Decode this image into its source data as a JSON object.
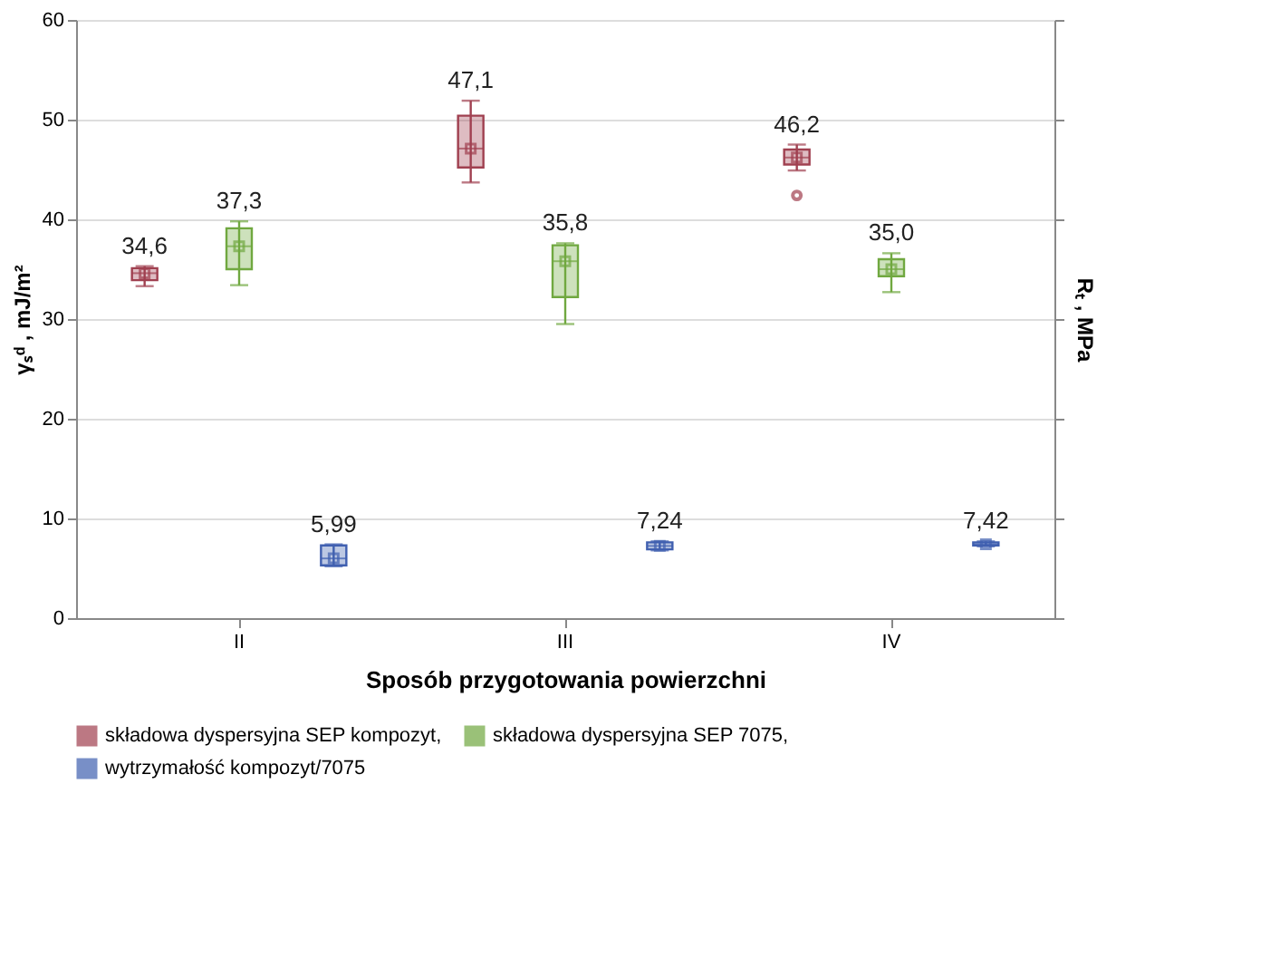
{
  "chart_data": {
    "type": "box",
    "xlabel": "Sposób przygotowania powierzchni",
    "ylabel": "γₛᵈ , mJ/m²",
    "y2label": "Rₜ , MPa",
    "categories": [
      "II",
      "III",
      "IV"
    ],
    "ylim": [
      0,
      60
    ],
    "yticks": [
      0,
      10,
      20,
      30,
      40,
      50,
      60
    ],
    "grid": "y",
    "legend": "bottom",
    "marker": "square",
    "series": [
      {
        "name": "składowa dyspersyjna SEP kompozyt,",
        "color": "#a04050",
        "value_labels": [
          "34,6",
          "47,1",
          "46,2"
        ],
        "boxes": [
          {
            "low": 33.3,
            "q1": 33.9,
            "median": 34.6,
            "q3": 35.1,
            "high": 35.3,
            "mean": 34.6
          },
          {
            "low": 43.7,
            "q1": 45.2,
            "median": 47.1,
            "q3": 50.4,
            "high": 51.9,
            "mean": 47.1
          },
          {
            "low": 44.9,
            "q1": 45.5,
            "median": 46.2,
            "q3": 47.0,
            "high": 47.5,
            "mean": 46.2,
            "outliers": [
              42.4
            ]
          }
        ]
      },
      {
        "name": "składowa dyspersyjna SEP 7075,",
        "color": "#70a840",
        "value_labels": [
          "37,3",
          "35,8",
          "35,0"
        ],
        "boxes": [
          {
            "low": 33.4,
            "q1": 35.0,
            "median": 37.3,
            "q3": 39.1,
            "high": 39.8,
            "mean": 37.3
          },
          {
            "low": 29.5,
            "q1": 32.2,
            "median": 35.8,
            "q3": 37.4,
            "high": 37.6,
            "mean": 35.8
          },
          {
            "low": 32.7,
            "q1": 34.3,
            "median": 35.0,
            "q3": 36.0,
            "high": 36.6,
            "mean": 35.0
          }
        ]
      },
      {
        "name": "wytrzymałość kompozyt/7075",
        "color": "#4060b0",
        "value_labels": [
          "5,99",
          "7,24",
          "7,42"
        ],
        "boxes": [
          {
            "low": 5.2,
            "q1": 5.3,
            "median": 5.99,
            "q3": 7.3,
            "high": 7.4,
            "mean": 5.99
          },
          {
            "low": 6.8,
            "q1": 6.9,
            "median": 7.24,
            "q3": 7.6,
            "high": 7.7,
            "mean": 7.24
          },
          {
            "low": 7.2,
            "q1": 7.3,
            "median": 7.42,
            "q3": 7.6,
            "high": 7.7,
            "mean": 7.42
          }
        ]
      }
    ]
  }
}
